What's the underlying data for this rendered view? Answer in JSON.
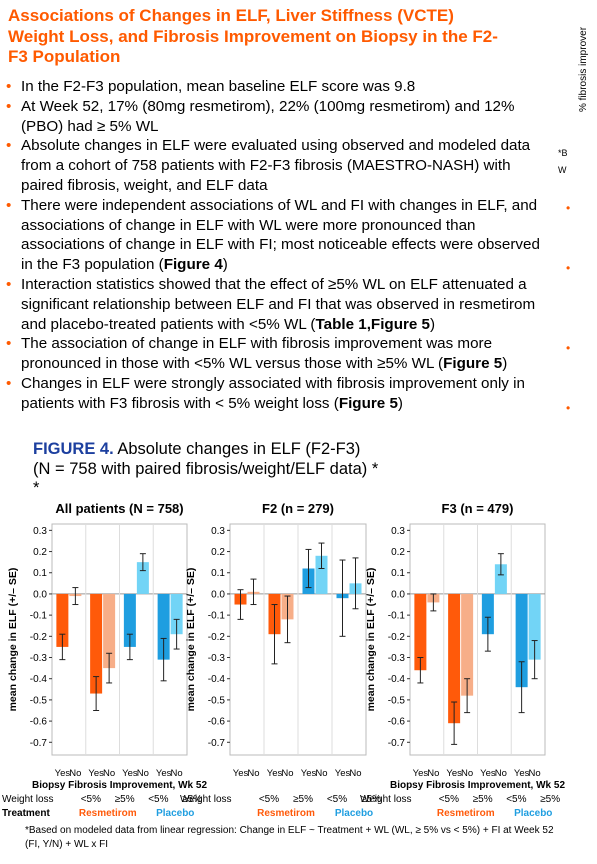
{
  "header": {
    "title_lines": [
      "Associations of Changes in ELF, Liver Stiffness (VCTE)",
      "Weight Loss, and Fibrosis Improvement on Biopsy in the F2-",
      "F3 Population"
    ]
  },
  "bullets": [
    [
      {
        "text": "In the F2-F3 population, mean baseline ELF score was 9.8"
      }
    ],
    [
      {
        "text": "At Week 52, 17% (80mg resmetirom), 22% (100mg resmetirom) and 12% (PBO) had ≥ 5% WL"
      }
    ],
    [
      {
        "text": "Absolute changes in ELF were evaluated using observed and modeled data from a cohort of 758 patients with F2-F3 fibrosis (MAESTRO-NASH) with paired fibrosis, weight, and ELF data"
      }
    ],
    [
      {
        "text": "There were independent associations of WL and FI with changes in ELF, and associations of change in ELF with WL were more pronounced than associations of change in ELF with FI; most noticeable effects were observed in the F3 population ("
      },
      {
        "text": "Figure 4",
        "bold": true
      },
      {
        "text": ")"
      }
    ],
    [
      {
        "text": "Interaction statistics showed that the effect of ≥5% WL on ELF attenuated a significant relationship between ELF and FI that was observed in resmetirom and placebo-treated patients with <5% WL ("
      },
      {
        "text": "Table 1,Figure 5",
        "bold": true
      },
      {
        "text": ")"
      }
    ],
    [
      {
        "text": "The association of change in ELF with fibrosis improvement was more pronounced in those with <5% WL versus those with ≥5% WL ("
      },
      {
        "text": "Figure 5",
        "bold": true
      },
      {
        "text": ")"
      }
    ],
    [
      {
        "text": "Changes in ELF were strongly associated with fibrosis improvement only in patients with F3 fibrosis with < 5% weight loss ("
      },
      {
        "text": "Figure 5",
        "bold": true
      },
      {
        "text": ")"
      }
    ]
  ],
  "clipped": {
    "axis_label": "% fibrosis improver",
    "note": [
      "*B",
      "W"
    ]
  },
  "figure": {
    "label": "FIGURE 4.",
    "caption": "Absolute changes in ELF (F2-F3)",
    "caption2": "(N = 758 with paired fibrosis/weight/ELF data) *",
    "caption3": "*"
  },
  "chart_data": [
    {
      "type": "bar",
      "title": "All patients (N = 758)",
      "y_label": "mean change in ELF (+/– SE)",
      "x_label": "Biopsy Fibrosis Improvement, Wk 52",
      "categories": [
        "Yes",
        "No",
        "Yes",
        "No",
        "Yes",
        "No",
        "Yes",
        "No"
      ],
      "values": [
        -0.25,
        -0.01,
        -0.47,
        -0.35,
        -0.25,
        0.15,
        -0.31,
        -0.19
      ],
      "errors": [
        0.06,
        0.04,
        0.08,
        0.07,
        0.06,
        0.04,
        0.1,
        0.07
      ],
      "colors": [
        "#ff5a0a",
        "#f7ae88",
        "#ff5a0a",
        "#f7ae88",
        "#1f9ee0",
        "#72d4f6",
        "#1f9ee0",
        "#72d4f6"
      ],
      "ylim": [
        -0.76,
        0.33
      ],
      "yticks": [
        0.3,
        0.2,
        0.1,
        {
          "value": 0,
          "label": "0.0"
        },
        -0.1,
        -0.2,
        -0.3,
        -0.4,
        -0.5,
        -0.6,
        -0.7
      ],
      "weight_loss_label": "Weight loss",
      "weight_loss_groups": [
        "<5%",
        "≥5%",
        "<5%",
        "≥5%"
      ],
      "treatment_label": "Treatment",
      "treatment_groups": [
        "Resmetirom",
        "Placebo"
      ],
      "treatment_colors": [
        "#ff5a0a",
        "#1f9ee0"
      ]
    },
    {
      "type": "bar",
      "title": "F2 (n = 279)",
      "y_label": "mean change in ELF (+/– SE)",
      "categories": [
        "Yes",
        "No",
        "Yes",
        "No",
        "Yes",
        "No",
        "Yes",
        "No"
      ],
      "values": [
        -0.05,
        0.01,
        -0.19,
        -0.12,
        0.12,
        0.18,
        -0.02,
        0.05
      ],
      "errors": [
        0.07,
        0.06,
        0.14,
        0.11,
        0.09,
        0.06,
        0.18,
        0.12
      ],
      "colors": [
        "#ff5a0a",
        "#f7ae88",
        "#ff5a0a",
        "#f7ae88",
        "#1f9ee0",
        "#72d4f6",
        "#1f9ee0",
        "#72d4f6"
      ],
      "ylim": [
        -0.76,
        0.33
      ],
      "yticks": [
        0.3,
        0.2,
        0.1,
        {
          "value": 0,
          "label": "0.0"
        },
        -0.1,
        -0.2,
        -0.3,
        -0.4,
        -0.5,
        -0.6,
        -0.7
      ],
      "weight_loss_label": "Weight loss",
      "weight_loss_groups": [
        "<5%",
        "≥5%",
        "<5%",
        "≥5%"
      ],
      "treatment_groups": [
        "Resmetirom",
        "Placebo"
      ],
      "treatment_colors": [
        "#ff5a0a",
        "#1f9ee0"
      ]
    },
    {
      "type": "bar",
      "title": "F3 (n = 479)",
      "y_label": "mean change in ELF (+/– SE)",
      "x_label": "Biopsy Fibrosis Improvement, Wk 52",
      "categories": [
        "Yes",
        "No",
        "Yes",
        "No",
        "Yes",
        "No",
        "Yes",
        "No"
      ],
      "values": [
        -0.36,
        -0.04,
        -0.61,
        -0.48,
        -0.19,
        0.14,
        -0.44,
        -0.31
      ],
      "errors": [
        0.06,
        0.04,
        0.1,
        0.08,
        0.08,
        0.05,
        0.12,
        0.09
      ],
      "colors": [
        "#ff5a0a",
        "#f7ae88",
        "#ff5a0a",
        "#f7ae88",
        "#1f9ee0",
        "#72d4f6",
        "#1f9ee0",
        "#72d4f6"
      ],
      "ylim": [
        -0.76,
        0.33
      ],
      "yticks": [
        0.3,
        0.2,
        0.1,
        {
          "value": 0,
          "label": "0.0"
        },
        -0.1,
        -0.2,
        -0.3,
        -0.4,
        -0.5,
        -0.6,
        -0.7
      ],
      "weight_loss_label": "Weight loss",
      "weight_loss_groups": [
        "<5%",
        "≥5%",
        "<5%",
        "≥5%"
      ],
      "treatment_groups": [
        "Resmetirom",
        "Placebo"
      ],
      "treatment_colors": [
        "#ff5a0a",
        "#1f9ee0"
      ]
    }
  ],
  "footnote": "*Based on modeled data from linear regression:  Change in ELF ~ Treatment + WL (WL, ≥ 5% vs < 5%) + FI at Week 52 (FI, Y/N)  + WL x FI"
}
